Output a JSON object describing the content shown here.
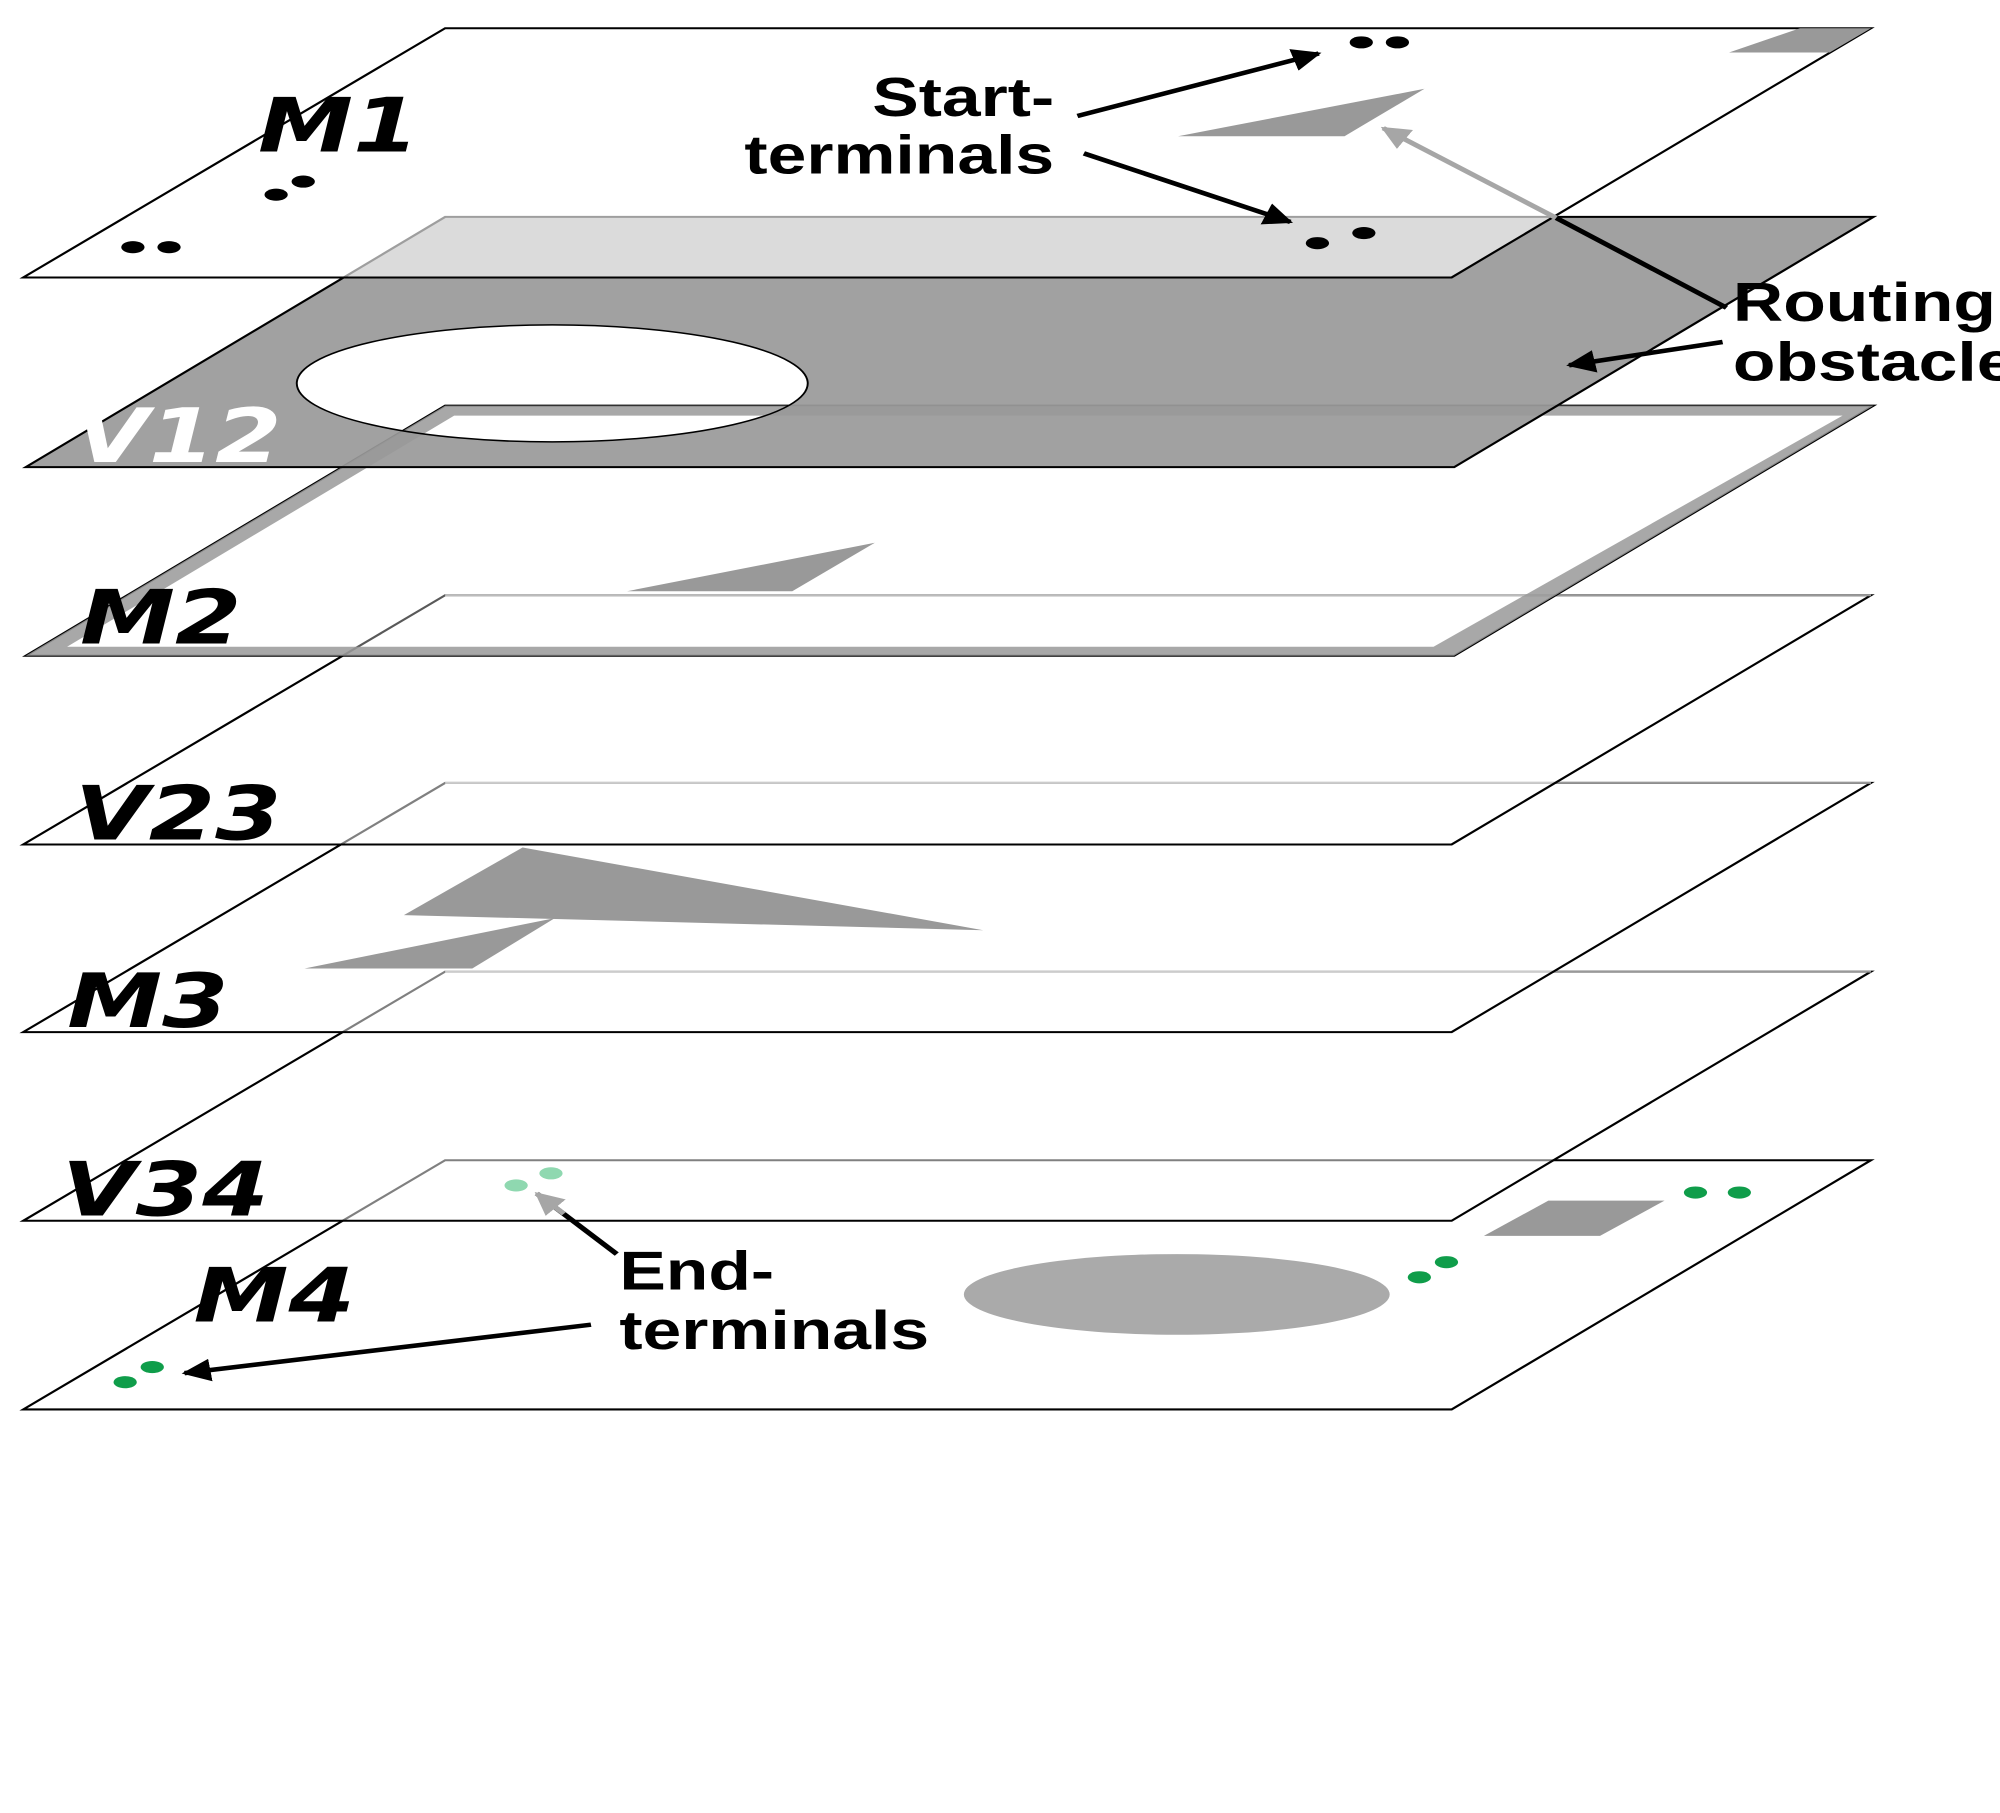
{
  "layers": [
    {
      "id": "M1",
      "label": "M1"
    },
    {
      "id": "V12",
      "label": "V12"
    },
    {
      "id": "M2",
      "label": "M2"
    },
    {
      "id": "V23",
      "label": "V23"
    },
    {
      "id": "M3",
      "label": "M3"
    },
    {
      "id": "V34",
      "label": "V34"
    },
    {
      "id": "M4",
      "label": "M4"
    }
  ],
  "annotations": {
    "start_terminals": [
      "Start-",
      "terminals"
    ],
    "routing_obstacles": [
      "Routing",
      "obstacles"
    ],
    "end_terminals": [
      "End-",
      "terminals"
    ]
  },
  "colors": {
    "obstacle": "#999999",
    "obstacle_light": "#aaaaaa",
    "plane_outline": "#000000",
    "start_terminal": "#000000",
    "end_terminal": "#0f9d4a",
    "end_terminal_faded": "#8fd8b0",
    "arrow_faded": "#a6a6a6"
  }
}
